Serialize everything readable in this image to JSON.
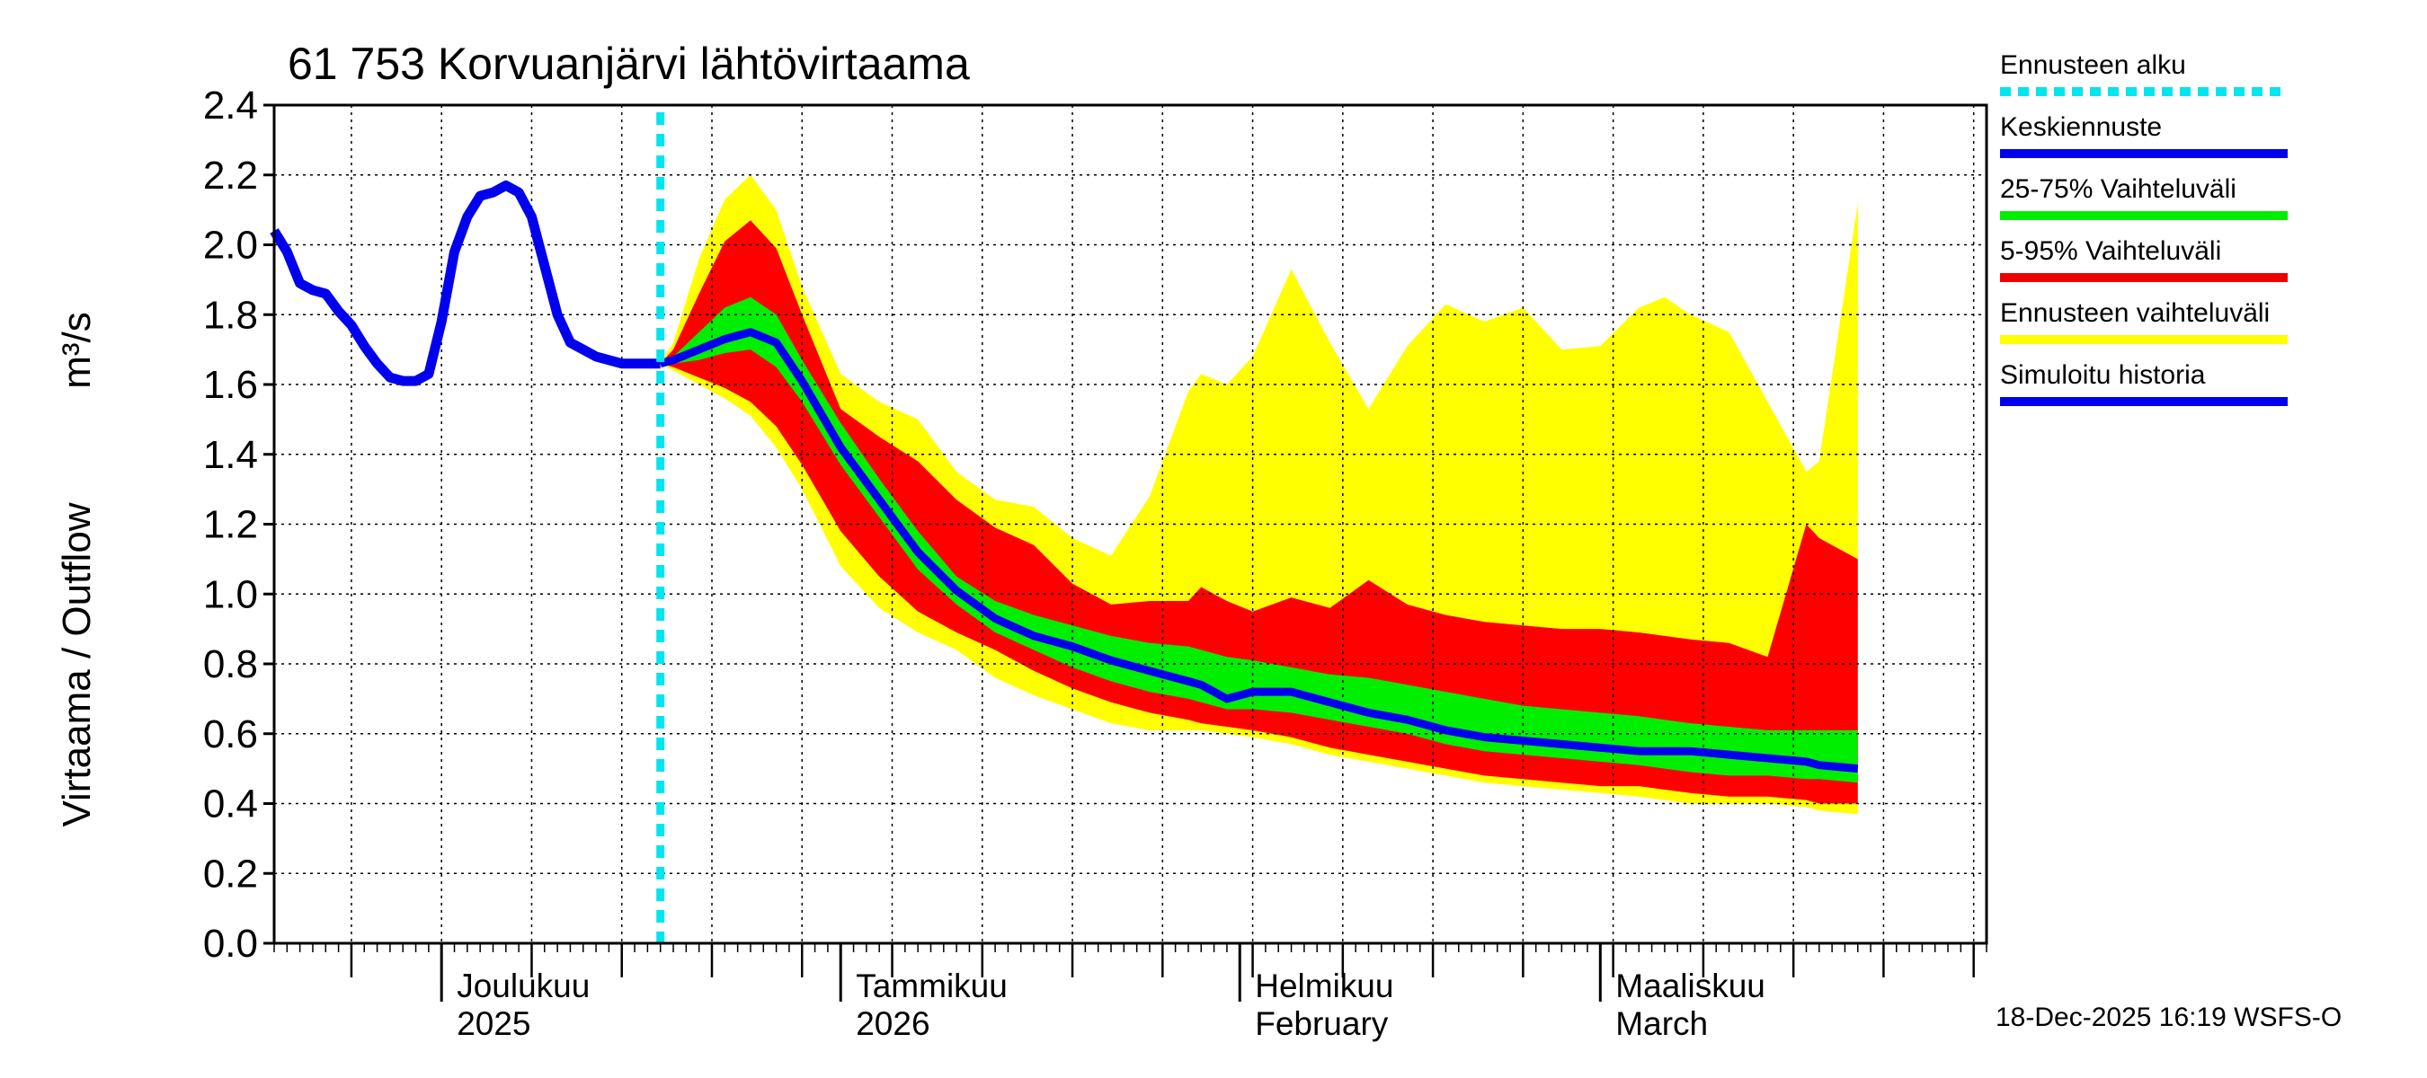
{
  "chart_data": {
    "type": "area",
    "title": "61 753 Korvuanjärvi lähtövirtaama",
    "ylabel_fi": "Virtaama / Outflow",
    "ylabel_unit": "m³/s",
    "ylim": [
      0.0,
      2.4
    ],
    "yticks": [
      "0.0",
      "0.2",
      "0.4",
      "0.6",
      "0.8",
      "1.0",
      "1.2",
      "1.4",
      "1.6",
      "1.8",
      "2.0",
      "2.2",
      "2.4"
    ],
    "x_range": [
      "2025-11-18",
      "2026-03-31"
    ],
    "forecast_start": "2025-12-18",
    "month_labels": [
      {
        "date": "2025-12-01",
        "line1": "Joulukuu",
        "line2": "2025"
      },
      {
        "date": "2026-01-01",
        "line1": "Tammikuu",
        "line2": "2026"
      },
      {
        "date": "2026-02-01",
        "line1": "Helmikuu",
        "line2": "February"
      },
      {
        "date": "2026-03-01",
        "line1": "Maaliskuu",
        "line2": "March"
      }
    ],
    "history": {
      "days": [
        0,
        1,
        2,
        3,
        4,
        5,
        6,
        7,
        8,
        9,
        10,
        11,
        12,
        13,
        14,
        15,
        16,
        17,
        18,
        19,
        20,
        21,
        22,
        23,
        24,
        25,
        26,
        27,
        28,
        29,
        30
      ],
      "values": [
        2.04,
        1.98,
        1.89,
        1.87,
        1.86,
        1.81,
        1.77,
        1.71,
        1.66,
        1.62,
        1.61,
        1.61,
        1.63,
        1.78,
        1.98,
        2.08,
        2.14,
        2.15,
        2.17,
        2.15,
        2.08,
        1.94,
        1.8,
        1.72,
        1.7,
        1.68,
        1.67,
        1.66,
        1.66,
        1.66,
        1.66
      ]
    },
    "forecast": {
      "days": [
        30,
        31,
        33,
        35,
        37,
        39,
        41,
        44,
        47,
        50,
        53,
        56,
        59,
        62,
        65,
        68,
        71,
        72,
        74,
        76,
        79,
        82,
        85,
        88,
        91,
        94,
        97,
        100,
        103,
        106,
        108,
        110,
        113,
        116,
        119,
        120,
        123
      ],
      "max": [
        1.66,
        1.72,
        1.96,
        2.13,
        2.2,
        2.1,
        1.88,
        1.63,
        1.55,
        1.5,
        1.35,
        1.27,
        1.25,
        1.16,
        1.11,
        1.28,
        1.58,
        1.63,
        1.6,
        1.68,
        1.93,
        1.72,
        1.53,
        1.71,
        1.83,
        1.78,
        1.82,
        1.7,
        1.71,
        1.82,
        1.85,
        1.8,
        1.75,
        1.55,
        1.35,
        1.38,
        2.12
      ],
      "p95": [
        1.66,
        1.7,
        1.86,
        2.01,
        2.07,
        1.99,
        1.8,
        1.53,
        1.45,
        1.38,
        1.27,
        1.19,
        1.14,
        1.03,
        0.97,
        0.98,
        0.98,
        1.02,
        0.98,
        0.95,
        0.99,
        0.96,
        1.04,
        0.97,
        0.94,
        0.92,
        0.91,
        0.9,
        0.9,
        0.89,
        0.88,
        0.87,
        0.86,
        0.82,
        1.2,
        1.16,
        1.1
      ],
      "p75": [
        1.66,
        1.68,
        1.75,
        1.82,
        1.85,
        1.8,
        1.67,
        1.49,
        1.33,
        1.18,
        1.05,
        0.98,
        0.94,
        0.91,
        0.88,
        0.86,
        0.85,
        0.84,
        0.82,
        0.81,
        0.79,
        0.77,
        0.76,
        0.74,
        0.72,
        0.7,
        0.68,
        0.67,
        0.66,
        0.65,
        0.64,
        0.63,
        0.62,
        0.61,
        0.61,
        0.61,
        0.61
      ],
      "median": [
        1.66,
        1.67,
        1.7,
        1.73,
        1.75,
        1.72,
        1.61,
        1.42,
        1.27,
        1.12,
        1.01,
        0.93,
        0.88,
        0.85,
        0.81,
        0.78,
        0.75,
        0.74,
        0.7,
        0.72,
        0.72,
        0.69,
        0.66,
        0.64,
        0.61,
        0.59,
        0.58,
        0.57,
        0.56,
        0.55,
        0.55,
        0.55,
        0.54,
        0.53,
        0.52,
        0.51,
        0.5
      ],
      "p25": [
        1.66,
        1.66,
        1.67,
        1.69,
        1.7,
        1.65,
        1.55,
        1.37,
        1.22,
        1.07,
        0.97,
        0.89,
        0.84,
        0.79,
        0.75,
        0.72,
        0.7,
        0.69,
        0.67,
        0.67,
        0.66,
        0.64,
        0.62,
        0.6,
        0.57,
        0.55,
        0.54,
        0.53,
        0.52,
        0.51,
        0.5,
        0.49,
        0.48,
        0.48,
        0.47,
        0.47,
        0.46
      ],
      "p5": [
        1.66,
        1.65,
        1.62,
        1.59,
        1.55,
        1.48,
        1.37,
        1.18,
        1.05,
        0.95,
        0.89,
        0.84,
        0.78,
        0.73,
        0.69,
        0.66,
        0.64,
        0.63,
        0.62,
        0.61,
        0.59,
        0.56,
        0.54,
        0.52,
        0.5,
        0.48,
        0.47,
        0.46,
        0.45,
        0.45,
        0.44,
        0.43,
        0.42,
        0.42,
        0.41,
        0.4,
        0.4
      ],
      "min": [
        1.66,
        1.64,
        1.6,
        1.56,
        1.51,
        1.42,
        1.3,
        1.08,
        0.96,
        0.89,
        0.84,
        0.76,
        0.71,
        0.67,
        0.63,
        0.61,
        0.61,
        0.61,
        0.6,
        0.59,
        0.57,
        0.54,
        0.52,
        0.5,
        0.48,
        0.46,
        0.45,
        0.44,
        0.43,
        0.42,
        0.41,
        0.4,
        0.4,
        0.4,
        0.39,
        0.38,
        0.37
      ]
    },
    "legend": [
      {
        "label": "Ennusteen alku",
        "color": "#00e5ee",
        "style": "dotted"
      },
      {
        "label": "Keskiennuste",
        "color": "#0000ee",
        "style": "solid"
      },
      {
        "label": "25-75% Vaihteluväli",
        "color": "#00ee00",
        "style": "solid"
      },
      {
        "label": "5-95% Vaihteluväli",
        "color": "#ee0000",
        "style": "solid"
      },
      {
        "label": "Ennusteen vaihteluväli",
        "color": "#ffff00",
        "style": "solid"
      },
      {
        "label": "Simuloitu historia",
        "color": "#0000ee",
        "style": "solid"
      }
    ],
    "colors": {
      "range": "#ffff00",
      "p5_95": "#ff0000",
      "p25_75": "#00ee00",
      "median": "#0000ee",
      "history": "#0000ee",
      "forecast_start": "#00e5ee"
    }
  },
  "footer": "18-Dec-2025 16:19 WSFS-O"
}
